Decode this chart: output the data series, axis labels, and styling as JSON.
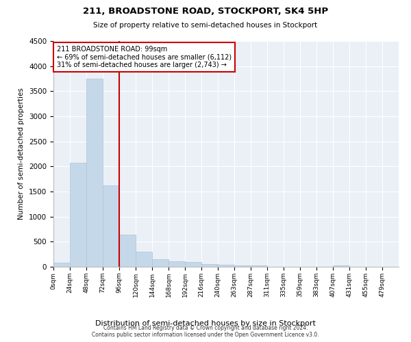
{
  "title": "211, BROADSTONE ROAD, STOCKPORT, SK4 5HP",
  "subtitle": "Size of property relative to semi-detached houses in Stockport",
  "xlabel": "Distribution of semi-detached houses by size in Stockport",
  "ylabel": "Number of semi-detached properties",
  "annotation_line1": "211 BROADSTONE ROAD: 99sqm",
  "annotation_line2": "← 69% of semi-detached houses are smaller (6,112)",
  "annotation_line3": "31% of semi-detached houses are larger (2,743) →",
  "bar_color": "#c5d8ea",
  "bar_edge_color": "#aac4d8",
  "marker_line_color": "#cc0000",
  "annotation_box_edge_color": "#cc0000",
  "background_color": "#eaf0f6",
  "grid_color": "#ffffff",
  "ylim": [
    0,
    4500
  ],
  "yticks": [
    0,
    500,
    1000,
    1500,
    2000,
    2500,
    3000,
    3500,
    4000,
    4500
  ],
  "bin_labels": [
    "0sqm",
    "24sqm",
    "48sqm",
    "72sqm",
    "96sqm",
    "120sqm",
    "144sqm",
    "168sqm",
    "192sqm",
    "216sqm",
    "240sqm",
    "263sqm",
    "287sqm",
    "311sqm",
    "335sqm",
    "359sqm",
    "383sqm",
    "407sqm",
    "431sqm",
    "455sqm",
    "479sqm"
  ],
  "counts": [
    80,
    2070,
    3750,
    1620,
    640,
    295,
    155,
    115,
    90,
    55,
    40,
    25,
    25,
    5,
    5,
    2,
    2,
    30,
    2,
    2,
    0
  ],
  "red_line_bin_index": 4,
  "footer_line1": "Contains HM Land Registry data © Crown copyright and database right 2024.",
  "footer_line2": "Contains public sector information licensed under the Open Government Licence v3.0."
}
